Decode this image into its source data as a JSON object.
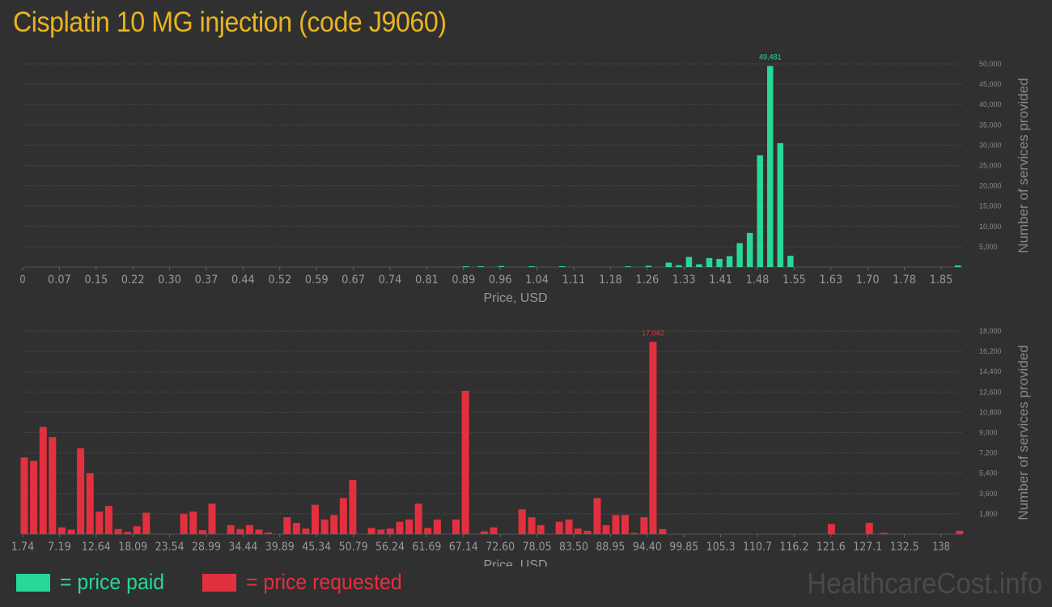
{
  "title": "Cisplatin 10 MG injection (code J9060)",
  "colors": {
    "paid": "#27d896",
    "requested": "#e3303f",
    "title": "#e8b41f",
    "background": "#303030"
  },
  "legend": {
    "paid_label": "= price paid",
    "requested_label": "= price requested"
  },
  "watermark": "HealthcareCost.info",
  "chart_data": [
    {
      "type": "bar",
      "series_name": "price paid",
      "xlabel": "Price, USD",
      "ylabel": "Number of services provided",
      "x_tick_labels": [
        "0",
        "0.07",
        "0.15",
        "0.22",
        "0.30",
        "0.37",
        "0.44",
        "0.52",
        "0.59",
        "0.67",
        "0.74",
        "0.81",
        "0.89",
        "0.96",
        "1.04",
        "1.11",
        "1.18",
        "1.26",
        "1.33",
        "1.41",
        "1.48",
        "1.55",
        "1.63",
        "1.70",
        "1.78",
        "1.85"
      ],
      "x_range": [
        0,
        1.85
      ],
      "y_ticks": [
        5000,
        10000,
        15000,
        20000,
        25000,
        30000,
        35000,
        40000,
        45000,
        50000
      ],
      "y_tick_labels": [
        "5,000",
        "10,000",
        "15,000",
        "20,000",
        "25,000",
        "30,000",
        "35,000",
        "40,000",
        "45,000",
        "50,000"
      ],
      "ylim": [
        0,
        50000
      ],
      "peak_label": "49,481",
      "bins": [
        {
          "x": 0.87,
          "value": 120
        },
        {
          "x": 0.9,
          "value": 80
        },
        {
          "x": 0.94,
          "value": 260
        },
        {
          "x": 1.0,
          "value": 180
        },
        {
          "x": 1.06,
          "value": 140
        },
        {
          "x": 1.19,
          "value": 100
        },
        {
          "x": 1.23,
          "value": 320
        },
        {
          "x": 1.27,
          "value": 1100
        },
        {
          "x": 1.29,
          "value": 450
        },
        {
          "x": 1.31,
          "value": 2500
        },
        {
          "x": 1.33,
          "value": 700
        },
        {
          "x": 1.35,
          "value": 2200
        },
        {
          "x": 1.37,
          "value": 2000
        },
        {
          "x": 1.39,
          "value": 2700
        },
        {
          "x": 1.41,
          "value": 5900
        },
        {
          "x": 1.43,
          "value": 8400
        },
        {
          "x": 1.45,
          "value": 27500
        },
        {
          "x": 1.47,
          "value": 49481
        },
        {
          "x": 1.49,
          "value": 30500
        },
        {
          "x": 1.51,
          "value": 2800
        },
        {
          "x": 1.84,
          "value": 400
        }
      ]
    },
    {
      "type": "bar",
      "series_name": "price requested",
      "xlabel": "Price, USD",
      "ylabel": "Number of services provided",
      "x_tick_labels": [
        "1.74",
        "7.19",
        "12.64",
        "18.09",
        "23.54",
        "28.99",
        "34.44",
        "39.89",
        "45.34",
        "50.79",
        "56.24",
        "61.69",
        "67.14",
        "72.60",
        "78.05",
        "83.50",
        "88.95",
        "94.40",
        "99.85",
        "105.3",
        "110.7",
        "116.2",
        "121.6",
        "127.1",
        "132.5",
        "138"
      ],
      "x_range": [
        1.74,
        138
      ],
      "y_ticks": [
        1800,
        3600,
        5400,
        7200,
        9000,
        10800,
        12600,
        14400,
        16200,
        18000
      ],
      "y_tick_labels": [
        "1,800",
        "3,600",
        "5,400",
        "7,200",
        "9,000",
        "10,800",
        "12,600",
        "14,400",
        "16,200",
        "18,000"
      ],
      "ylim": [
        0,
        18000
      ],
      "peak_label": "17,042",
      "bins": [
        {
          "x": 1.74,
          "value": 6800
        },
        {
          "x": 3.1,
          "value": 6500
        },
        {
          "x": 4.47,
          "value": 9500
        },
        {
          "x": 5.83,
          "value": 8600
        },
        {
          "x": 7.19,
          "value": 600
        },
        {
          "x": 8.56,
          "value": 400
        },
        {
          "x": 9.92,
          "value": 7600
        },
        {
          "x": 11.28,
          "value": 5400
        },
        {
          "x": 12.64,
          "value": 2000
        },
        {
          "x": 14.0,
          "value": 2500
        },
        {
          "x": 15.37,
          "value": 450
        },
        {
          "x": 16.73,
          "value": 200
        },
        {
          "x": 18.09,
          "value": 700
        },
        {
          "x": 19.45,
          "value": 1900
        },
        {
          "x": 24.9,
          "value": 1800
        },
        {
          "x": 26.26,
          "value": 2000
        },
        {
          "x": 27.63,
          "value": 350
        },
        {
          "x": 28.99,
          "value": 2700
        },
        {
          "x": 31.71,
          "value": 800
        },
        {
          "x": 33.08,
          "value": 450
        },
        {
          "x": 34.44,
          "value": 800
        },
        {
          "x": 35.8,
          "value": 400
        },
        {
          "x": 37.16,
          "value": 150
        },
        {
          "x": 39.89,
          "value": 1500
        },
        {
          "x": 41.25,
          "value": 1000
        },
        {
          "x": 42.61,
          "value": 500
        },
        {
          "x": 43.97,
          "value": 2600
        },
        {
          "x": 45.34,
          "value": 1300
        },
        {
          "x": 46.7,
          "value": 1700
        },
        {
          "x": 48.06,
          "value": 3200
        },
        {
          "x": 49.42,
          "value": 4800
        },
        {
          "x": 52.15,
          "value": 550
        },
        {
          "x": 53.51,
          "value": 400
        },
        {
          "x": 54.87,
          "value": 500
        },
        {
          "x": 56.24,
          "value": 1100
        },
        {
          "x": 57.6,
          "value": 1300
        },
        {
          "x": 58.96,
          "value": 2700
        },
        {
          "x": 60.32,
          "value": 550
        },
        {
          "x": 61.69,
          "value": 1300
        },
        {
          "x": 64.41,
          "value": 1300
        },
        {
          "x": 65.77,
          "value": 12700
        },
        {
          "x": 68.5,
          "value": 250
        },
        {
          "x": 69.86,
          "value": 600
        },
        {
          "x": 74.0,
          "value": 2200
        },
        {
          "x": 75.4,
          "value": 1500
        },
        {
          "x": 76.7,
          "value": 800
        },
        {
          "x": 79.4,
          "value": 1100
        },
        {
          "x": 80.8,
          "value": 1300
        },
        {
          "x": 82.1,
          "value": 500
        },
        {
          "x": 83.5,
          "value": 300
        },
        {
          "x": 84.9,
          "value": 3200
        },
        {
          "x": 86.2,
          "value": 800
        },
        {
          "x": 87.6,
          "value": 1700
        },
        {
          "x": 88.95,
          "value": 1700
        },
        {
          "x": 90.3,
          "value": 100
        },
        {
          "x": 91.7,
          "value": 1500
        },
        {
          "x": 93.0,
          "value": 17042
        },
        {
          "x": 94.4,
          "value": 450
        },
        {
          "x": 118.9,
          "value": 900
        },
        {
          "x": 124.4,
          "value": 1000
        },
        {
          "x": 126.5,
          "value": 120
        },
        {
          "x": 137.5,
          "value": 300
        }
      ]
    }
  ]
}
